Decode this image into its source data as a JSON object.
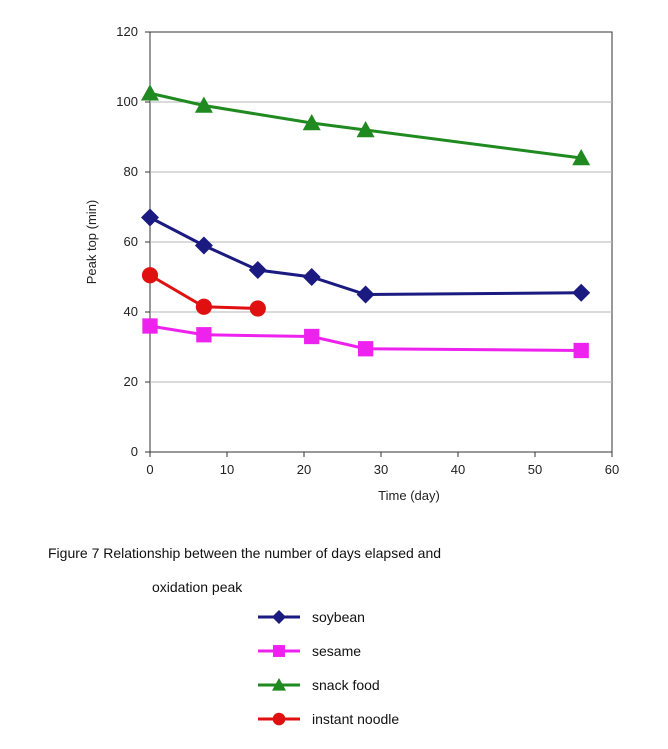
{
  "chart_data": {
    "type": "line",
    "title": "",
    "xlabel": "Time (day)",
    "ylabel": "Peak top (min)",
    "xlim": [
      0,
      60
    ],
    "ylim": [
      0,
      120
    ],
    "x_ticks": [
      "0",
      "10",
      "20",
      "30",
      "40",
      "50",
      "60"
    ],
    "y_ticks": [
      "0",
      "20",
      "40",
      "60",
      "80",
      "100",
      "120"
    ],
    "grid": "horizontal",
    "legend_position": "below",
    "series": [
      {
        "name": "soybean",
        "color": "#1a1a80",
        "marker": "diamond",
        "x": [
          0,
          7,
          14,
          21,
          28,
          56
        ],
        "y": [
          67,
          59,
          52,
          50,
          45,
          45.5
        ]
      },
      {
        "name": "sesame",
        "color": "#ee22ee",
        "marker": "square",
        "x": [
          0,
          7,
          21,
          28,
          56
        ],
        "y": [
          36,
          33.5,
          33,
          29.5,
          29
        ]
      },
      {
        "name": "snack food",
        "color": "#1f8a1f",
        "marker": "triangle",
        "x": [
          0,
          7,
          21,
          28,
          56
        ],
        "y": [
          102.5,
          99,
          94,
          92,
          84
        ]
      },
      {
        "name": "instant noodle",
        "color": "#e01010",
        "marker": "circle",
        "x": [
          0,
          7,
          14
        ],
        "y": [
          50.5,
          41.5,
          41
        ]
      }
    ]
  },
  "caption": {
    "line1": "Figure 7  Relationship between the number of days elapsed and",
    "line2": "oxidation peak"
  }
}
